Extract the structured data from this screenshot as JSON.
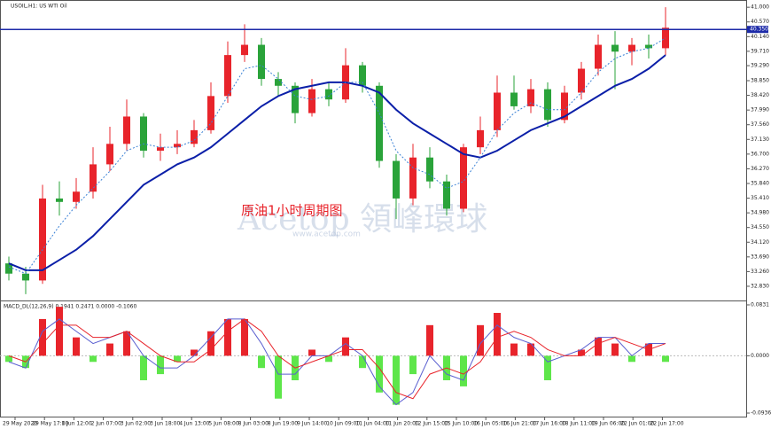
{
  "chart_data": [
    {
      "type": "candlestick",
      "title": "USOIL,H1: US WTI Oil",
      "annotation": "原油1小时周期图",
      "watermark": "Acetop 領峰環球",
      "watermark_sub": "www.acetop.com",
      "up_color": "#e8242b",
      "down_color": "#2aa33a",
      "open": [
        33.5,
        33.2,
        33.0,
        35.4,
        35.3,
        35.6,
        36.4,
        37.0,
        37.8,
        36.8,
        36.9,
        37.0,
        37.4,
        38.4,
        39.6,
        39.9,
        38.9,
        38.7,
        37.9,
        38.6,
        38.3,
        39.3,
        38.7,
        36.5,
        35.4,
        36.6,
        35.9,
        35.1,
        36.9,
        37.4,
        38.5,
        38.1,
        38.6,
        37.7,
        38.5,
        39.2,
        39.9,
        39.7,
        39.9,
        39.8
      ],
      "high": [
        33.7,
        33.4,
        35.8,
        35.9,
        36.0,
        36.9,
        37.5,
        38.3,
        37.9,
        37.3,
        37.4,
        37.7,
        38.8,
        40.0,
        40.5,
        40.1,
        39.1,
        38.8,
        38.9,
        38.8,
        39.8,
        39.4,
        38.8,
        36.7,
        37.0,
        36.9,
        36.1,
        37.0,
        37.8,
        39.0,
        39.0,
        38.9,
        38.8,
        38.7,
        39.4,
        40.2,
        40.3,
        40.1,
        40.2,
        41.0
      ],
      "low": [
        33.0,
        32.6,
        32.9,
        34.9,
        35.1,
        35.4,
        36.2,
        36.8,
        36.6,
        36.5,
        36.7,
        36.9,
        37.3,
        38.2,
        39.4,
        38.7,
        38.4,
        37.6,
        37.8,
        38.1,
        38.2,
        38.5,
        36.3,
        34.8,
        35.2,
        35.7,
        34.9,
        35.0,
        36.7,
        37.2,
        38.0,
        37.9,
        37.5,
        37.6,
        38.3,
        39.0,
        38.6,
        39.3,
        39.5,
        39.6
      ],
      "close": [
        33.2,
        33.0,
        35.4,
        35.3,
        35.6,
        36.4,
        37.0,
        37.8,
        36.8,
        36.9,
        37.0,
        37.4,
        38.4,
        39.6,
        39.9,
        38.9,
        38.7,
        37.9,
        38.6,
        38.3,
        39.3,
        38.7,
        36.5,
        35.4,
        36.6,
        35.9,
        35.1,
        36.9,
        37.4,
        38.5,
        38.1,
        38.6,
        37.7,
        38.5,
        39.2,
        39.9,
        39.7,
        39.9,
        39.8,
        40.4
      ],
      "lines": [
        {
          "color": "#0b1fa8",
          "style": "solid",
          "values": [
            33.5,
            33.3,
            33.3,
            33.6,
            33.9,
            34.3,
            34.8,
            35.3,
            35.8,
            36.1,
            36.4,
            36.6,
            36.9,
            37.3,
            37.7,
            38.1,
            38.4,
            38.6,
            38.7,
            38.8,
            38.8,
            38.7,
            38.5,
            38.0,
            37.6,
            37.3,
            37.0,
            36.7,
            36.6,
            36.8,
            37.1,
            37.4,
            37.6,
            37.8,
            38.1,
            38.4,
            38.7,
            38.9,
            39.2,
            39.6
          ]
        },
        {
          "color": "#3b82d6",
          "style": "dotted",
          "values": [
            33.4,
            33.2,
            33.9,
            34.6,
            35.2,
            35.7,
            36.2,
            36.8,
            37.0,
            36.9,
            36.9,
            37.1,
            37.6,
            38.4,
            39.2,
            39.3,
            38.9,
            38.4,
            38.3,
            38.4,
            38.8,
            38.8,
            37.9,
            36.8,
            36.3,
            36.1,
            35.7,
            35.9,
            36.6,
            37.4,
            37.9,
            38.2,
            38.0,
            38.0,
            38.5,
            39.1,
            39.5,
            39.7,
            39.8,
            40.1
          ]
        }
      ],
      "hline": {
        "value": 40.35,
        "label": "40.350",
        "color": "#1c2aa8"
      },
      "ylim": [
        32.44,
        41.16
      ],
      "yticks": [
        {
          "value": 41.0,
          "label": "41.000"
        },
        {
          "value": 40.57,
          "label": "40.570"
        },
        {
          "value": 40.14,
          "label": "40.140"
        },
        {
          "value": 39.71,
          "label": "39.710"
        },
        {
          "value": 39.29,
          "label": "39.290"
        },
        {
          "value": 38.85,
          "label": "38.850"
        },
        {
          "value": 38.42,
          "label": "38.420"
        },
        {
          "value": 37.99,
          "label": "37.990"
        },
        {
          "value": 37.56,
          "label": "37.560"
        },
        {
          "value": 37.13,
          "label": "37.130"
        },
        {
          "value": 36.7,
          "label": "36.700"
        },
        {
          "value": 36.27,
          "label": "36.270"
        },
        {
          "value": 35.84,
          "label": "35.840"
        },
        {
          "value": 35.41,
          "label": "35.410"
        },
        {
          "value": 34.98,
          "label": "34.980"
        },
        {
          "value": 34.55,
          "label": "34.550"
        },
        {
          "value": 34.12,
          "label": "34.120"
        },
        {
          "value": 33.69,
          "label": "33.690"
        },
        {
          "value": 33.26,
          "label": "33.260"
        },
        {
          "value": 32.83,
          "label": "32.830"
        }
      ],
      "time_labels": [
        "29 May 2020",
        "29 May 17:00",
        "1 Jun 12:00",
        "2 Jun 07:00",
        "3 Jun 02:00",
        "3 Jun 18:00",
        "4 Jun 13:00",
        "5 Jun 08:00",
        "8 Jun 03:00",
        "8 Jun 19:00",
        "9 Jun 14:00",
        "10 Jun 09:00",
        "11 Jun 04:00",
        "11 Jun 20:00",
        "12 Jun 15:00",
        "15 Jun 10:00",
        "16 Jun 05:00",
        "16 Jun 21:00",
        "17 Jun 16:00",
        "18 Jun 11:00",
        "19 Jun 06:00",
        "22 Jun 01:00",
        "22 Jun 17:00"
      ]
    },
    {
      "type": "macd",
      "title": "MACD_DL(12,26,9) 0.1941 0.2471 0.0000 -0.1060",
      "pos_color": "#e8242b",
      "neg_color": "#5ee64a",
      "histogram": [
        -0.01,
        -0.02,
        0.06,
        0.08,
        0.03,
        -0.01,
        0.02,
        0.04,
        -0.04,
        -0.03,
        -0.01,
        0.01,
        0.04,
        0.06,
        0.06,
        -0.02,
        -0.07,
        -0.04,
        0.01,
        -0.01,
        0.03,
        -0.02,
        -0.06,
        -0.08,
        -0.03,
        0.05,
        -0.04,
        -0.05,
        0.05,
        0.07,
        0.02,
        0.02,
        -0.04,
        0.0,
        0.01,
        0.03,
        0.02,
        -0.01,
        0.02,
        -0.01
      ],
      "lines": [
        {
          "color": "#5a5fd0",
          "values": [
            -0.01,
            -0.02,
            0.04,
            0.06,
            0.04,
            0.02,
            0.03,
            0.04,
            0.0,
            -0.02,
            -0.02,
            0.0,
            0.03,
            0.06,
            0.06,
            0.02,
            -0.03,
            -0.03,
            0.0,
            0.0,
            0.02,
            0.0,
            -0.05,
            -0.08,
            -0.06,
            0.0,
            -0.03,
            -0.04,
            0.02,
            0.05,
            0.03,
            0.02,
            -0.01,
            0.0,
            0.01,
            0.03,
            0.03,
            0.0,
            0.02,
            0.02
          ]
        },
        {
          "color": "#e8242b",
          "values": [
            0.0,
            -0.01,
            0.02,
            0.05,
            0.05,
            0.03,
            0.03,
            0.04,
            0.02,
            0.0,
            -0.01,
            -0.01,
            0.01,
            0.04,
            0.06,
            0.04,
            0.0,
            -0.02,
            -0.01,
            0.0,
            0.01,
            0.01,
            -0.02,
            -0.06,
            -0.07,
            -0.03,
            -0.02,
            -0.03,
            -0.01,
            0.03,
            0.04,
            0.03,
            0.01,
            0.0,
            0.0,
            0.02,
            0.03,
            0.02,
            0.01,
            0.02
          ]
        }
      ],
      "ylim": [
        -0.1008,
        0.0874
      ],
      "yticks": [
        0.0831,
        {
          "value": 0,
          "label": "0.0000"
        },
        -0.0936
      ]
    }
  ]
}
